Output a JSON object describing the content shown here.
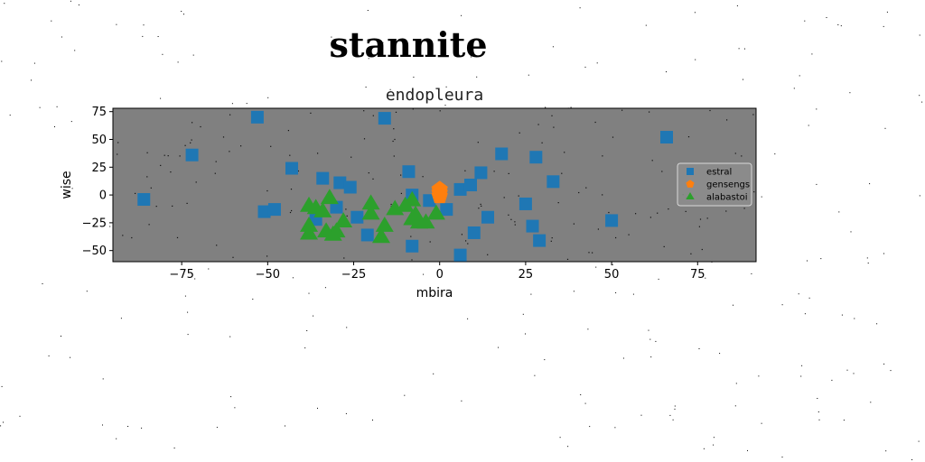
{
  "page_title": "stannite",
  "chart_data": {
    "type": "scatter",
    "title": "endopleura",
    "xlabel": "mbira",
    "ylabel": "wise",
    "xlim": [
      -95,
      92
    ],
    "ylim": [
      -60,
      78
    ],
    "xticks": [
      -75,
      -50,
      -25,
      0,
      25,
      50,
      75
    ],
    "yticks": [
      -50,
      -25,
      0,
      25,
      50,
      75
    ],
    "xtick_labels": [
      "−75",
      "−50",
      "−25",
      "0",
      "25",
      "50",
      "75"
    ],
    "ytick_labels": [
      "−50",
      "−25",
      "0",
      "25",
      "50",
      "75"
    ],
    "grid": false,
    "background": "#808080",
    "legend_position": "right",
    "series": [
      {
        "name": "estral",
        "marker": "square",
        "color": "#1f77b4",
        "points": [
          [
            -86,
            -4
          ],
          [
            -72,
            36
          ],
          [
            -53,
            70
          ],
          [
            -51,
            -15
          ],
          [
            -48,
            -13
          ],
          [
            -43,
            24
          ],
          [
            -34,
            15
          ],
          [
            -29,
            11
          ],
          [
            -26,
            7
          ],
          [
            -24,
            -20
          ],
          [
            -21,
            -36
          ],
          [
            -16,
            69
          ],
          [
            -9,
            21
          ],
          [
            -8,
            -46
          ],
          [
            -3,
            -5
          ],
          [
            2,
            -13
          ],
          [
            6,
            -54
          ],
          [
            6,
            5
          ],
          [
            10,
            -34
          ],
          [
            9,
            9
          ],
          [
            12,
            20
          ],
          [
            14,
            -20
          ],
          [
            18,
            37
          ],
          [
            25,
            -8
          ],
          [
            27,
            -28
          ],
          [
            28,
            34
          ],
          [
            29,
            -41
          ],
          [
            33,
            12
          ],
          [
            50,
            -23
          ],
          [
            66,
            52
          ],
          [
            -36,
            -22
          ],
          [
            -30,
            -11
          ],
          [
            -8,
            0
          ]
        ]
      },
      {
        "name": "gensengs",
        "marker": "pentagon",
        "color": "#ff7f0e",
        "points": [
          [
            0,
            5
          ],
          [
            0,
            2
          ],
          [
            0,
            -1
          ]
        ]
      },
      {
        "name": "alabastoi",
        "marker": "triangle",
        "color": "#2ca02c",
        "points": [
          [
            -38,
            -35
          ],
          [
            -38,
            -28
          ],
          [
            -38,
            -10
          ],
          [
            -36,
            -12
          ],
          [
            -34,
            -15
          ],
          [
            -33,
            -33
          ],
          [
            -32,
            -3
          ],
          [
            -31,
            -36
          ],
          [
            -30,
            -33
          ],
          [
            -28,
            -24
          ],
          [
            -20,
            -8
          ],
          [
            -20,
            -17
          ],
          [
            -17,
            -38
          ],
          [
            -16,
            -28
          ],
          [
            -13,
            -13
          ],
          [
            -8,
            -5
          ],
          [
            -8,
            -22
          ],
          [
            -7,
            -18
          ],
          [
            -6,
            -25
          ],
          [
            -4,
            -25
          ],
          [
            -1,
            -17
          ],
          [
            -10,
            -10
          ]
        ]
      }
    ]
  }
}
